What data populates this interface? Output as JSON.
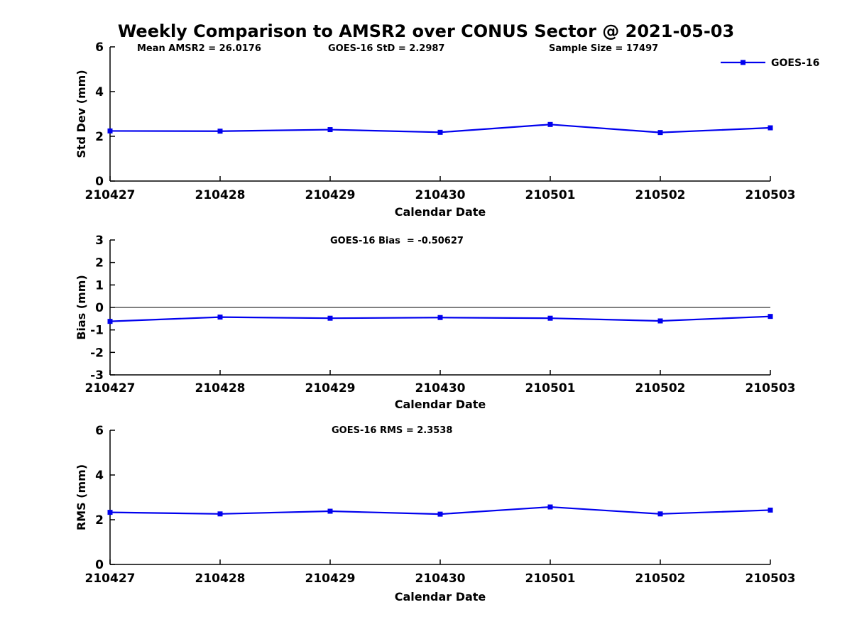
{
  "figure": {
    "title": "Weekly Comparison to AMSR2 over CONUS Sector @ 2021-05-03",
    "background_color": "#ffffff",
    "series_color": "#0000ee",
    "axis_color": "#000000",
    "legend": {
      "label": "GOES-16",
      "position": "top-right"
    }
  },
  "chart_data": [
    {
      "type": "line",
      "panel": "std-dev",
      "annotations": [
        "Mean AMSR2 = 26.0176",
        "GOES-16 StD = 2.2987",
        "Sample Size = 17497"
      ],
      "title": "",
      "xlabel": "Calendar Date",
      "ylabel": "Std Dev (mm)",
      "categories": [
        "210427",
        "210428",
        "210429",
        "210430",
        "210501",
        "210502",
        "210503"
      ],
      "series": [
        {
          "name": "GOES-16",
          "values": [
            2.24,
            2.23,
            2.3,
            2.18,
            2.53,
            2.17,
            2.38
          ]
        }
      ],
      "ylim": [
        0,
        6
      ],
      "yticks": [
        0,
        2,
        4,
        6
      ],
      "grid": false,
      "legend": true,
      "zero_line": false
    },
    {
      "type": "line",
      "panel": "bias",
      "annotations": [],
      "title": "GOES-16 Bias  = -0.50627",
      "xlabel": "Calendar Date",
      "ylabel": "Bias (mm)",
      "categories": [
        "210427",
        "210428",
        "210429",
        "210430",
        "210501",
        "210502",
        "210503"
      ],
      "series": [
        {
          "name": "GOES-16",
          "values": [
            -0.62,
            -0.43,
            -0.48,
            -0.45,
            -0.48,
            -0.6,
            -0.4
          ]
        }
      ],
      "ylim": [
        -3,
        3
      ],
      "yticks": [
        -3,
        -2,
        -1,
        0,
        1,
        2,
        3
      ],
      "grid": false,
      "legend": false,
      "zero_line": true
    },
    {
      "type": "line",
      "panel": "rms",
      "annotations": [],
      "title": "GOES-16 RMS = 2.3538",
      "xlabel": "Calendar Date",
      "ylabel": "RMS (mm)",
      "categories": [
        "210427",
        "210428",
        "210429",
        "210430",
        "210501",
        "210502",
        "210503"
      ],
      "series": [
        {
          "name": "GOES-16",
          "values": [
            2.33,
            2.26,
            2.38,
            2.25,
            2.57,
            2.26,
            2.43
          ]
        }
      ],
      "ylim": [
        0,
        6
      ],
      "yticks": [
        0,
        2,
        4,
        6
      ],
      "grid": false,
      "legend": false,
      "zero_line": false
    }
  ]
}
